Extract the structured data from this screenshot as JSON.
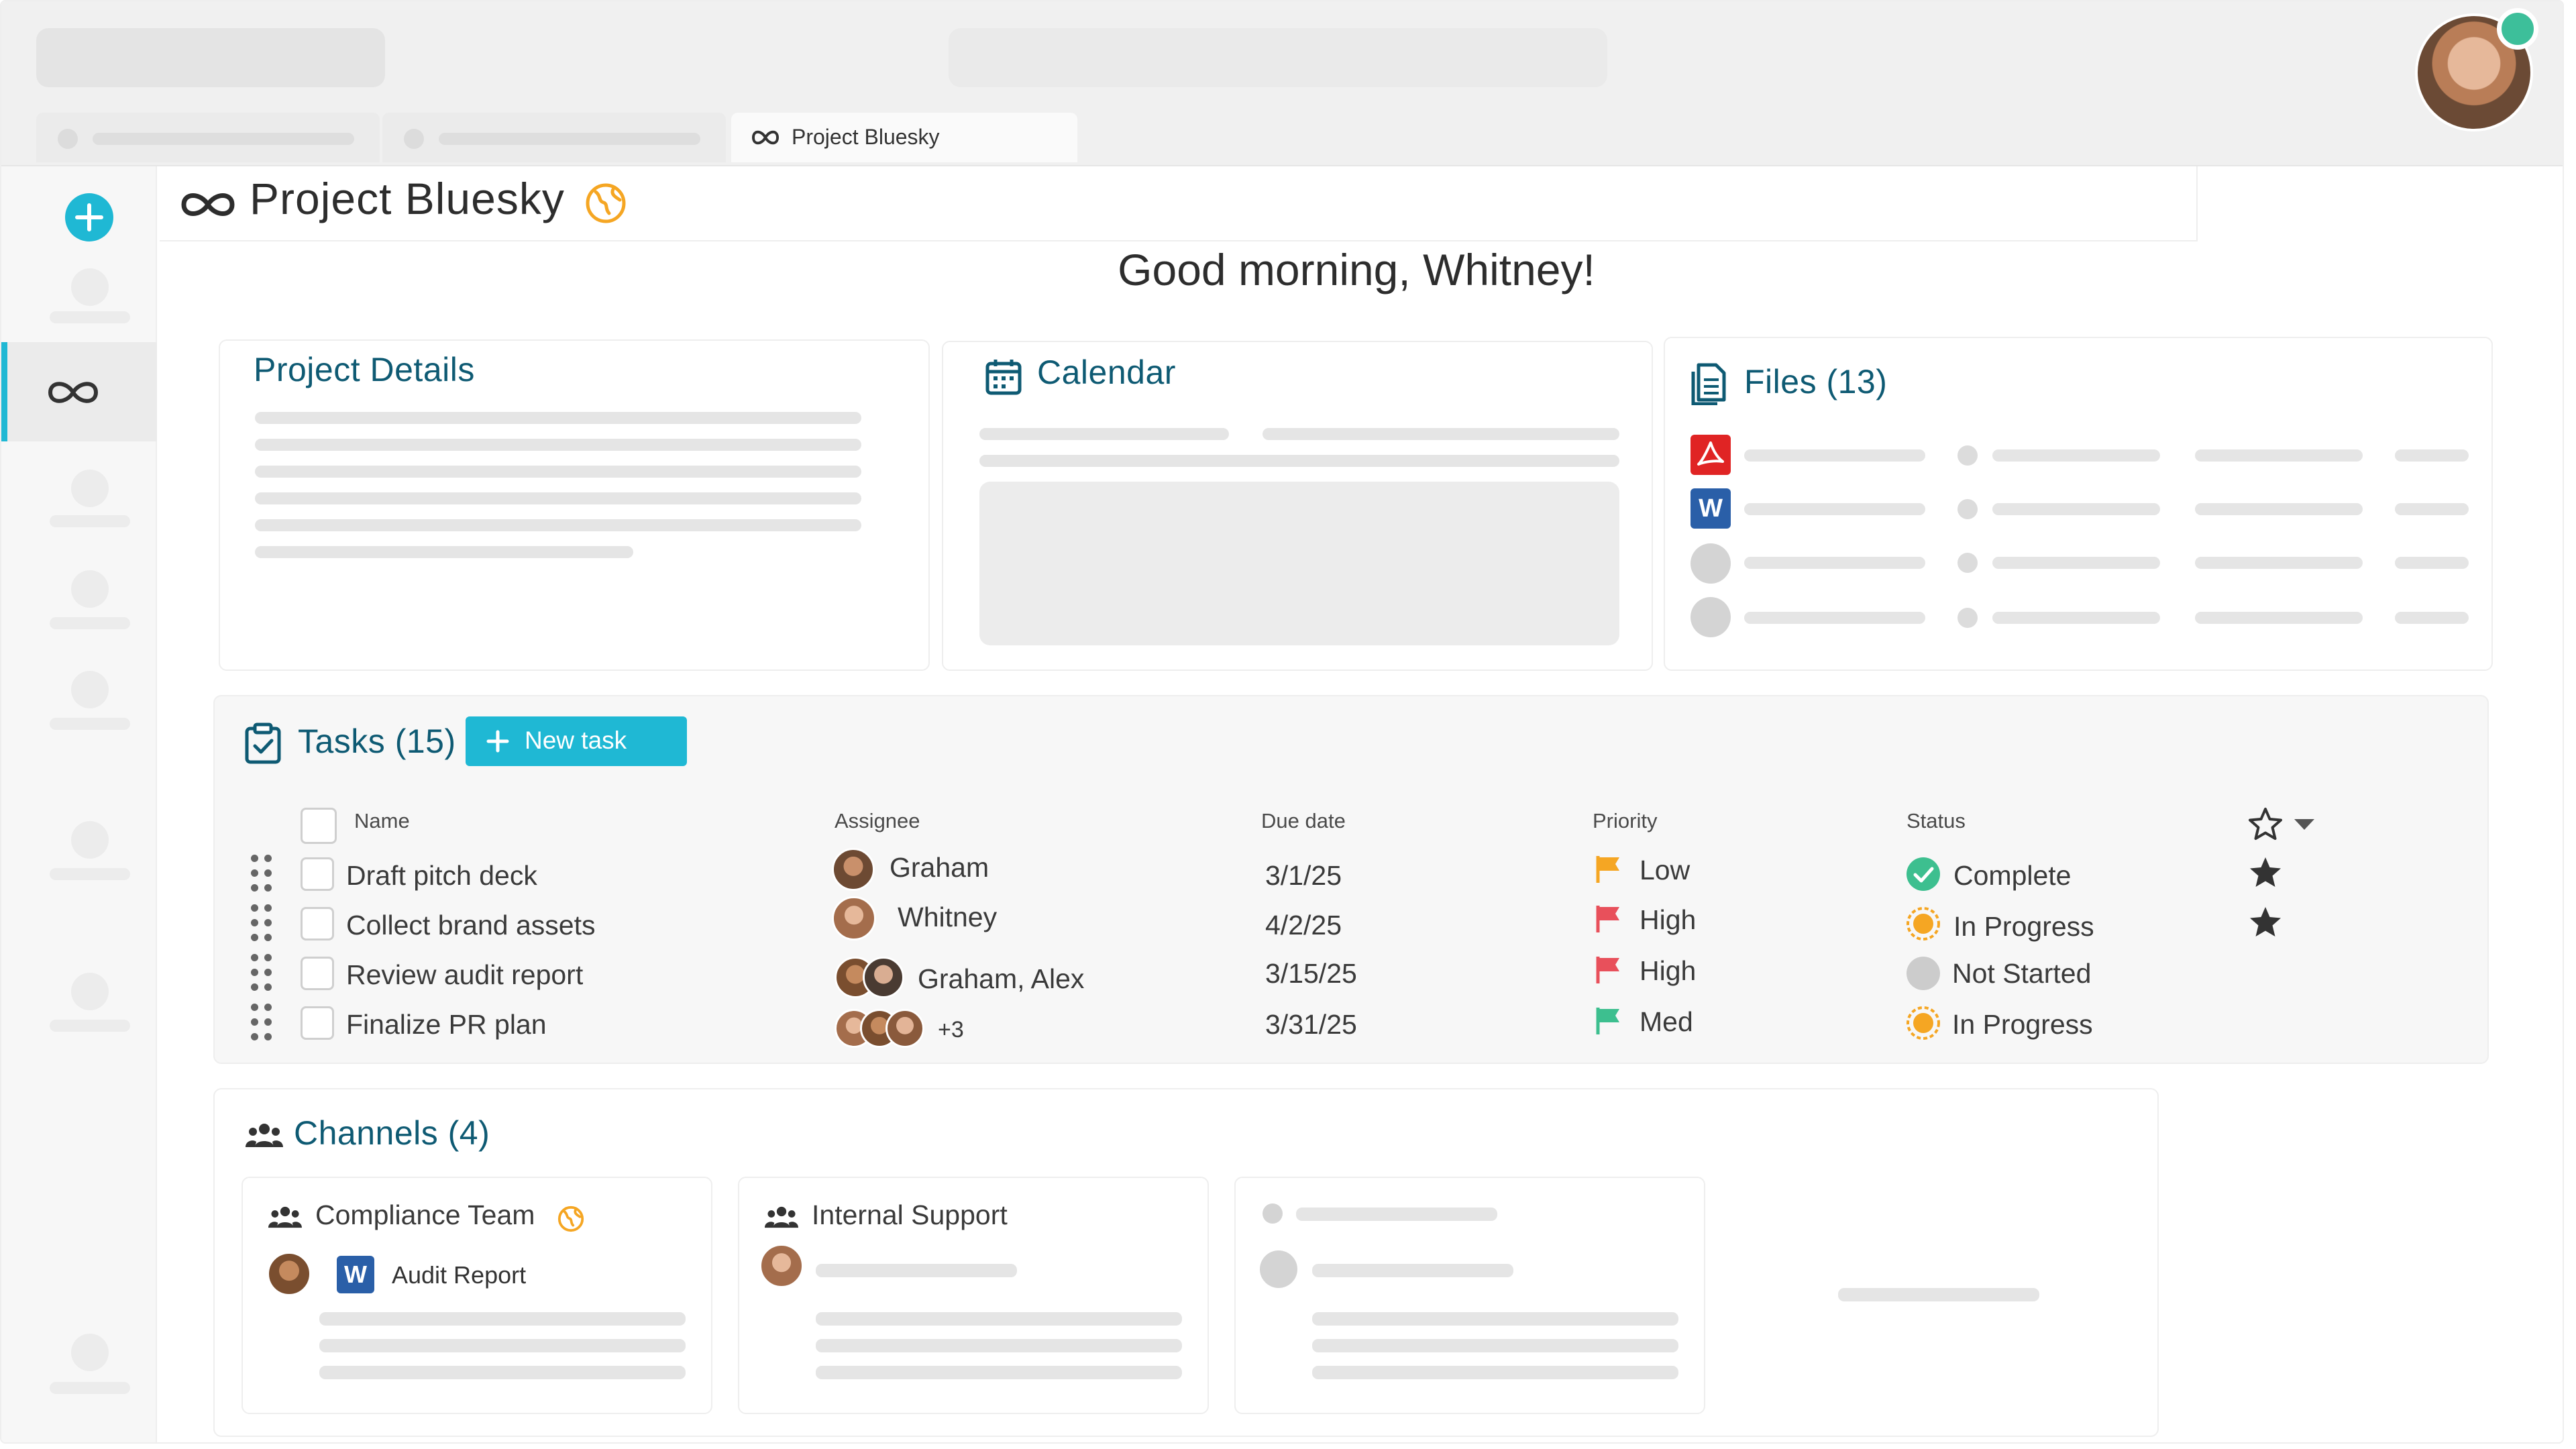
{
  "tabs": [
    {
      "label": ""
    },
    {
      "label": ""
    },
    {
      "label": "Project Bluesky",
      "icon": "infinity-icon"
    }
  ],
  "header": {
    "title": "Project Bluesky",
    "globe_icon": "globe-icon"
  },
  "greeting": "Good morning, Whitney!",
  "project_details": {
    "title": "Project Details"
  },
  "calendar": {
    "title": "Calendar"
  },
  "files": {
    "title": "Files (13)",
    "file_types": [
      "pdf",
      "word",
      "other",
      "other"
    ]
  },
  "tasks": {
    "title": "Tasks (15)",
    "new_task_label": "New task",
    "columns": {
      "name": "Name",
      "assignee": "Assignee",
      "due": "Due date",
      "priority": "Priority",
      "status": "Status"
    },
    "rows": [
      {
        "name": "Draft pitch deck",
        "assignee": "Graham",
        "due": "3/1/25",
        "priority": "Low",
        "priority_color": "#f5a623",
        "status": "Complete",
        "starred": true
      },
      {
        "name": "Collect brand assets",
        "assignee": "Whitney",
        "due": "4/2/25",
        "priority": "High",
        "priority_color": "#e8505b",
        "status": "In Progress",
        "starred": true
      },
      {
        "name": "Review audit report",
        "assignee": "Graham, Alex",
        "due": "3/15/25",
        "priority": "High",
        "priority_color": "#e8505b",
        "status": "Not Started",
        "starred": false
      },
      {
        "name": "Finalize PR plan",
        "assignee": "+3",
        "due": "3/31/25",
        "priority": "Med",
        "priority_color": "#3dbf8f",
        "status": "In Progress",
        "starred": false
      }
    ]
  },
  "channels": {
    "title": "Channels (4)",
    "items": [
      {
        "name": "Compliance Team",
        "file": "Audit Report"
      },
      {
        "name": "Internal Support"
      }
    ]
  },
  "colors": {
    "accent": "#1fb8d4",
    "heading": "#0e5a73",
    "complete": "#3dbf8f",
    "in_progress": "#f5a623",
    "not_started": "#cccccc"
  }
}
